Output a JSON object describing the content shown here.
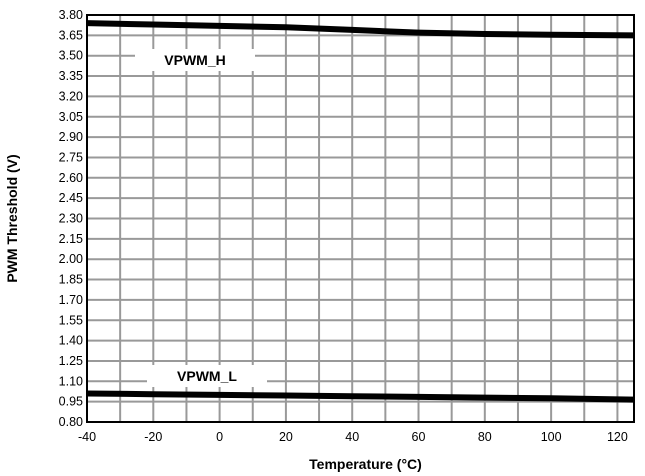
{
  "chart_data": {
    "type": "line",
    "title": "",
    "xlabel": "Temperature (°C)",
    "ylabel": "PWM Threshold (V)",
    "xlim": [
      -40,
      125
    ],
    "ylim": [
      0.8,
      3.8
    ],
    "x_ticks": [
      -40,
      -20,
      0,
      20,
      40,
      60,
      80,
      100,
      120
    ],
    "y_ticks": [
      "0.80",
      "0.95",
      "1.10",
      "1.25",
      "1.40",
      "1.55",
      "1.70",
      "1.85",
      "2.00",
      "2.15",
      "2.30",
      "2.45",
      "2.60",
      "2.75",
      "2.90",
      "3.05",
      "3.20",
      "3.35",
      "3.50",
      "3.65",
      "3.80"
    ],
    "grid": true,
    "series": [
      {
        "name": "VPWM_H",
        "x": [
          -40,
          -20,
          0,
          20,
          40,
          60,
          80,
          100,
          125
        ],
        "y": [
          3.74,
          3.73,
          3.72,
          3.71,
          3.69,
          3.67,
          3.66,
          3.655,
          3.65
        ]
      },
      {
        "name": "VPWM_L",
        "x": [
          -40,
          -20,
          0,
          20,
          40,
          60,
          80,
          100,
          125
        ],
        "y": [
          1.01,
          1.005,
          1.0,
          0.995,
          0.99,
          0.985,
          0.98,
          0.975,
          0.965
        ]
      }
    ],
    "colors": {
      "line": "#000000",
      "grid": "#999999",
      "frame": "#000000"
    }
  }
}
